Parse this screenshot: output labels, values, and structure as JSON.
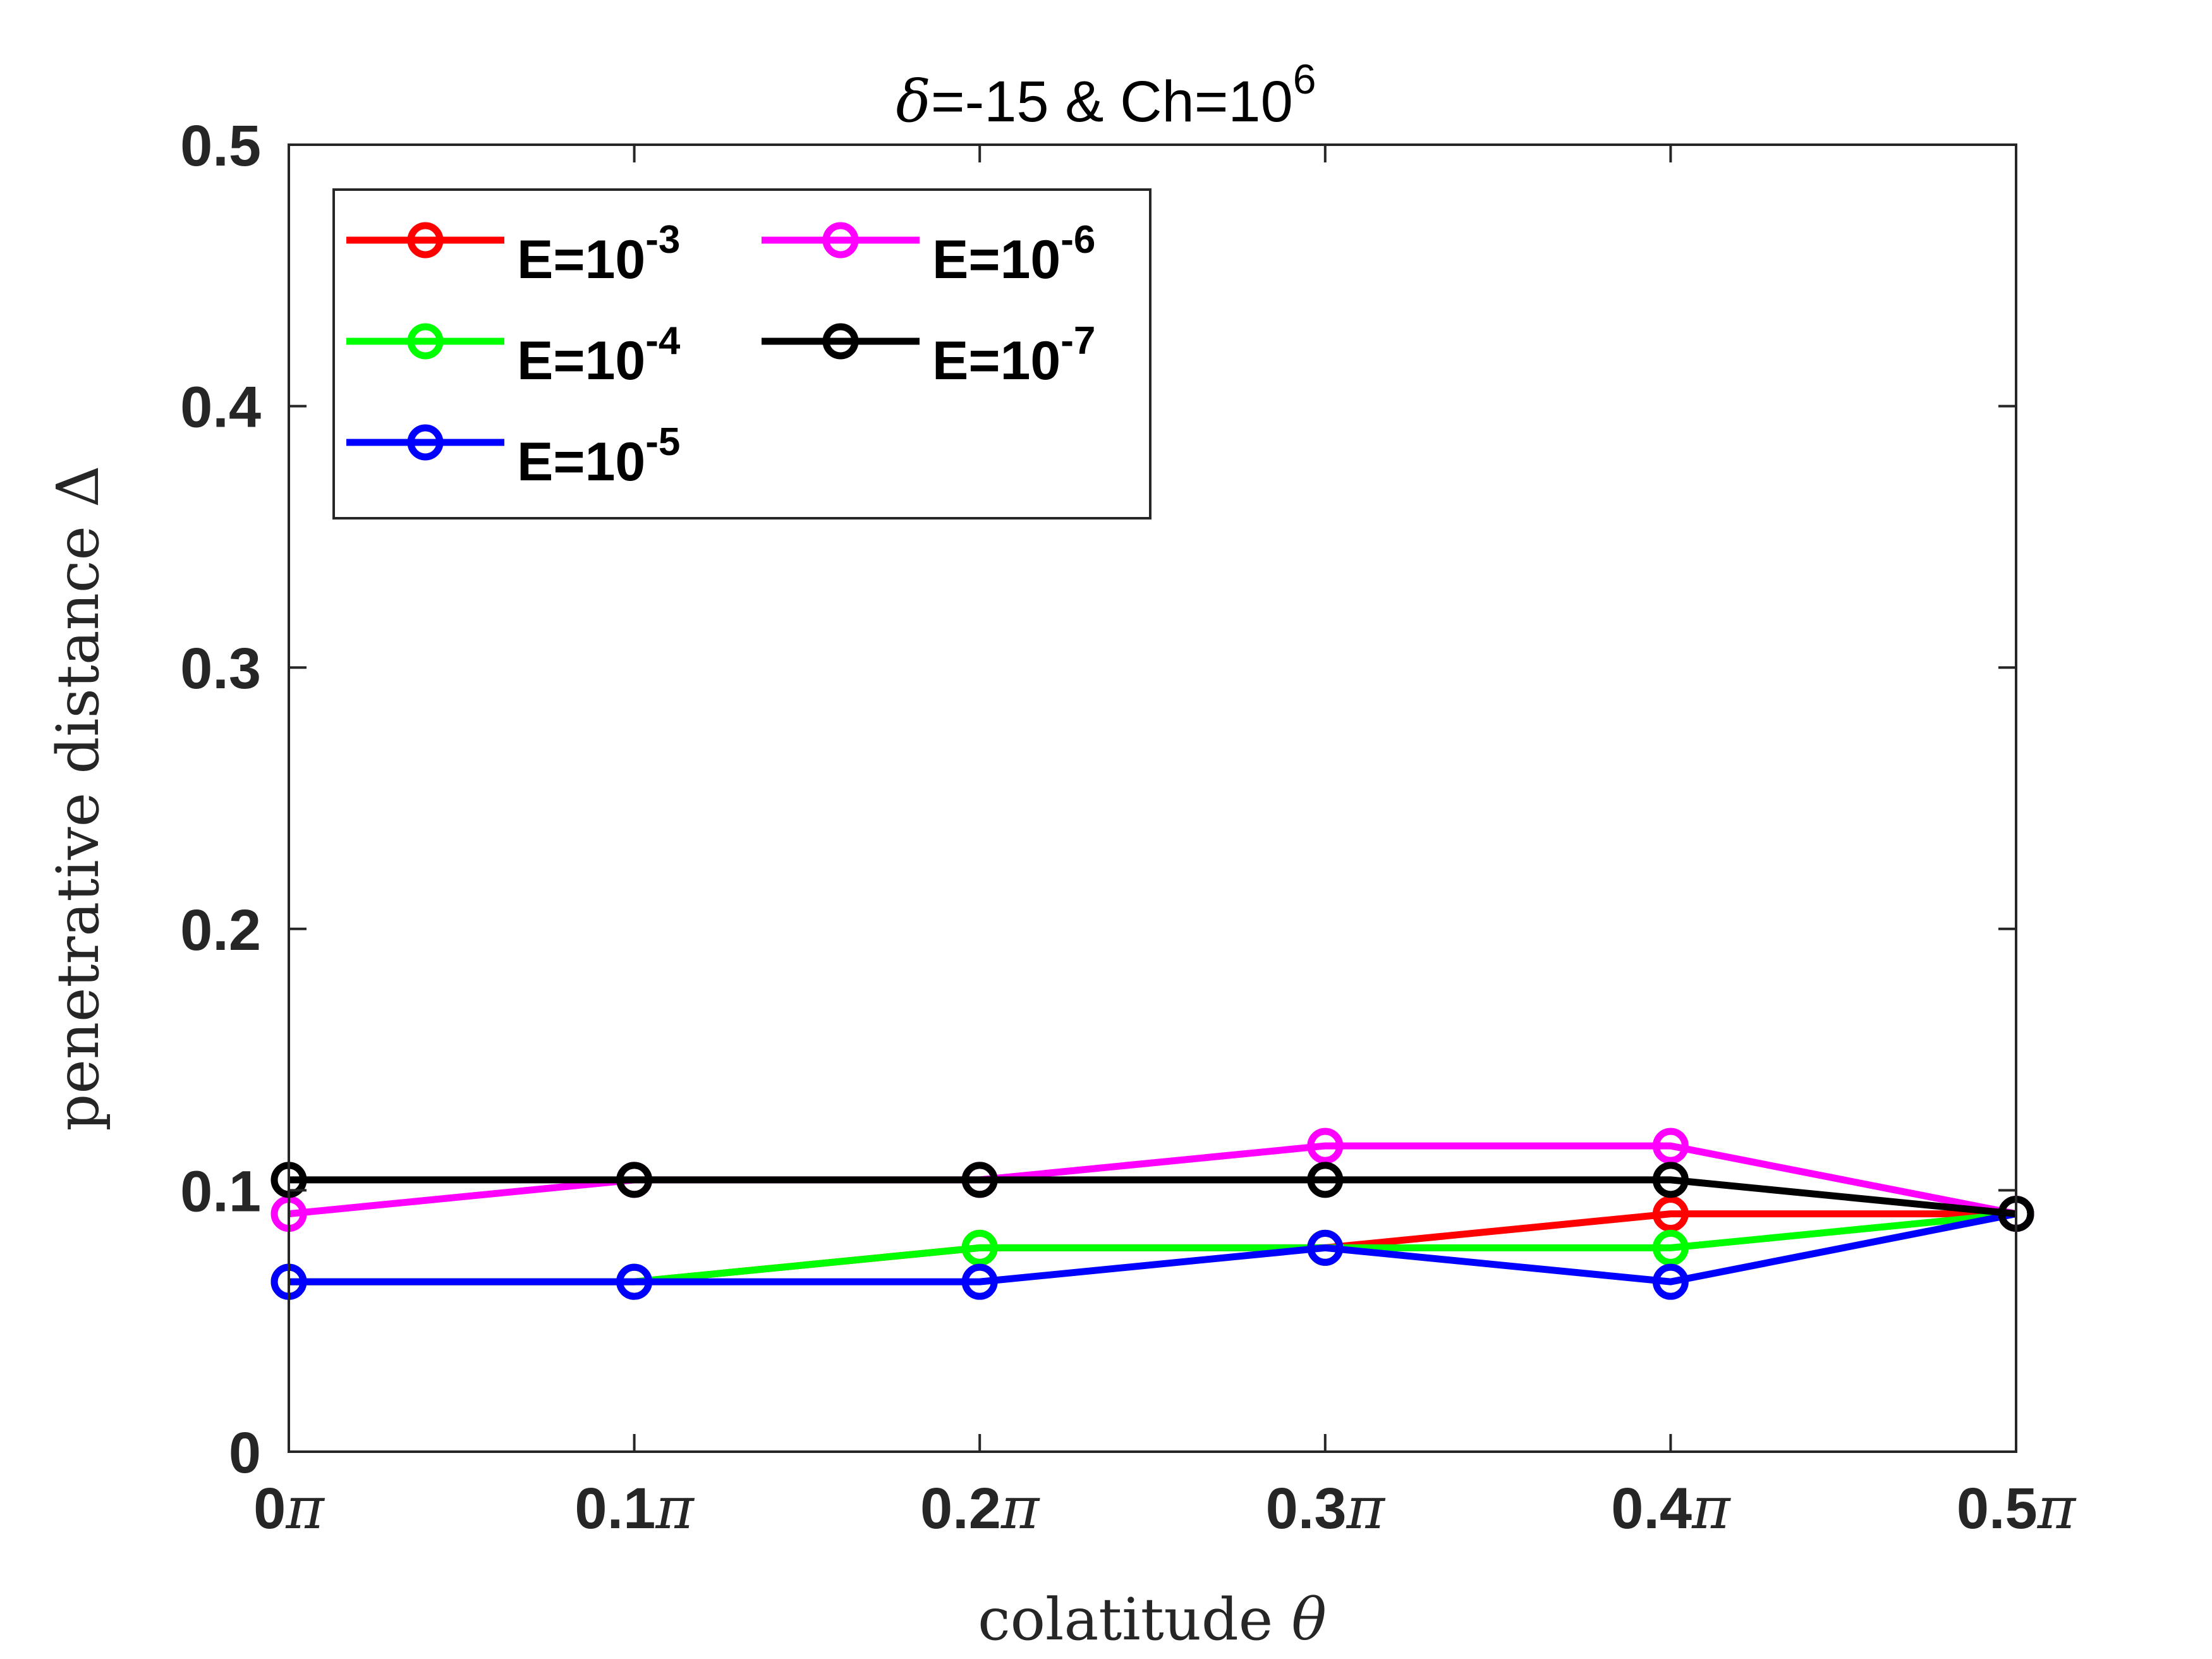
{
  "chart_data": {
    "type": "line",
    "title": {
      "delta_symbol": "δ",
      "main": "=-15 & Ch=10",
      "sup": "6"
    },
    "xlabel": {
      "text": "colatitude ",
      "symbol": "θ"
    },
    "ylabel": {
      "text": "penetrative distance ",
      "symbol": "Δ"
    },
    "x": [
      0,
      0.1,
      0.2,
      0.3,
      0.4,
      0.5
    ],
    "x_ticks": [
      {
        "value": 0,
        "num": "0",
        "unit": "π"
      },
      {
        "value": 0.1,
        "num": "0.1",
        "unit": "π"
      },
      {
        "value": 0.2,
        "num": "0.2",
        "unit": "π"
      },
      {
        "value": 0.3,
        "num": "0.3",
        "unit": "π"
      },
      {
        "value": 0.4,
        "num": "0.4",
        "unit": "π"
      },
      {
        "value": 0.5,
        "num": "0.5",
        "unit": "π"
      }
    ],
    "y_ticks": [
      {
        "value": 0,
        "label": "0"
      },
      {
        "value": 0.1,
        "label": "0.1"
      },
      {
        "value": 0.2,
        "label": "0.2"
      },
      {
        "value": 0.3,
        "label": "0.3"
      },
      {
        "value": 0.4,
        "label": "0.4"
      },
      {
        "value": 0.5,
        "label": "0.5"
      }
    ],
    "xlim": [
      0,
      0.5
    ],
    "ylim": [
      0,
      0.5
    ],
    "grid": false,
    "legend_position": "top-left",
    "series": [
      {
        "name_base": "E=10",
        "name_sup": "-3",
        "color": "#ff0000",
        "values": [
          0.065,
          0.065,
          0.078,
          0.078,
          0.091,
          0.091
        ]
      },
      {
        "name_base": "E=10",
        "name_sup": "-4",
        "color": "#00ff00",
        "values": [
          0.065,
          0.065,
          0.078,
          0.078,
          0.078,
          0.091
        ]
      },
      {
        "name_base": "E=10",
        "name_sup": "-5",
        "color": "#0000ff",
        "values": [
          0.065,
          0.065,
          0.065,
          0.078,
          0.065,
          0.091
        ]
      },
      {
        "name_base": "E=10",
        "name_sup": "-6",
        "color": "#ff00ff",
        "values": [
          0.091,
          0.104,
          0.104,
          0.117,
          0.117,
          0.091
        ]
      },
      {
        "name_base": "E=10",
        "name_sup": "-7",
        "color": "#000000",
        "values": [
          0.104,
          0.104,
          0.104,
          0.104,
          0.104,
          0.091
        ]
      }
    ]
  }
}
